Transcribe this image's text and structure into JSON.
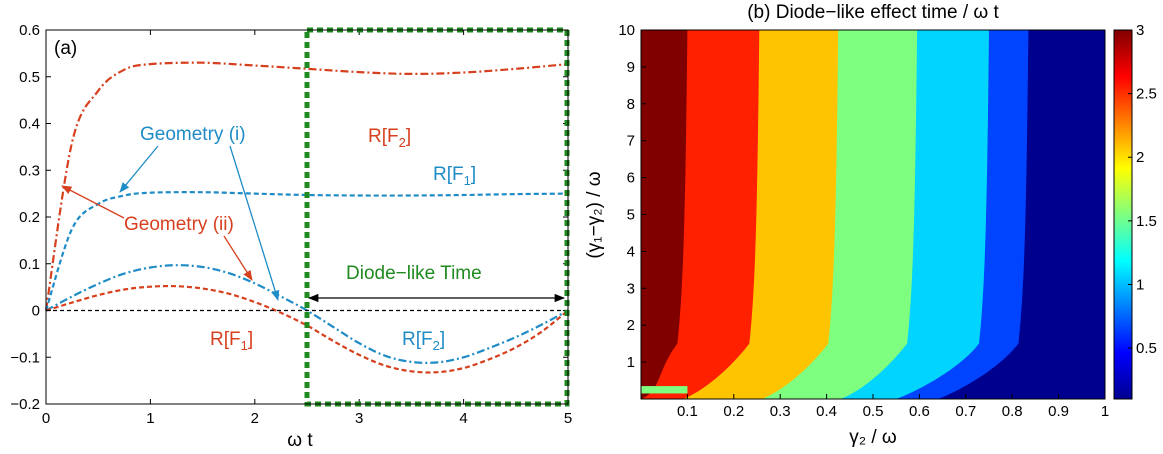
{
  "colors": {
    "red": "#d7401e",
    "blue": "#1f8cc6",
    "green": "#1f8a1f",
    "black": "#000000"
  },
  "chart_data": [
    {
      "type": "line",
      "panel_label": "(a)",
      "xlabel": "ω t",
      "xlim": [
        0,
        5
      ],
      "ylim": [
        -0.2,
        0.6
      ],
      "xticks": [
        "0",
        "1",
        "2",
        "3",
        "4",
        "5"
      ],
      "yticks": [
        "−0.2",
        "−0.1",
        "0",
        "0.1",
        "0.2",
        "0.3",
        "0.4",
        "0.5",
        "0.6"
      ],
      "grid": false,
      "series": [
        {
          "key": "red_dashdot",
          "label": "R[F₂]",
          "geometry": "ii",
          "x": [
            0,
            0.25,
            0.5,
            0.75,
            1.0,
            1.5,
            2.0,
            2.5,
            3.0,
            3.5,
            4.0,
            4.5,
            5.0
          ],
          "y": [
            0,
            0.36,
            0.47,
            0.515,
            0.527,
            0.53,
            0.524,
            0.517,
            0.51,
            0.506,
            0.509,
            0.517,
            0.527
          ]
        },
        {
          "key": "blue_dashed",
          "label": "R[F₁]",
          "geometry": "i",
          "x": [
            0,
            0.25,
            0.5,
            0.75,
            1.0,
            1.5,
            2.0,
            2.5,
            3.0,
            3.5,
            4.0,
            4.5,
            5.0
          ],
          "y": [
            0,
            0.175,
            0.228,
            0.246,
            0.252,
            0.253,
            0.25,
            0.247,
            0.246,
            0.246,
            0.247,
            0.249,
            0.25
          ]
        },
        {
          "key": "blue_dashdot",
          "label": "R[F₂]",
          "geometry": "i",
          "x": [
            0,
            0.25,
            0.5,
            0.75,
            1.0,
            1.25,
            1.5,
            1.75,
            2.0,
            2.25,
            2.5,
            2.75,
            3.0,
            3.25,
            3.5,
            3.75,
            4.0,
            4.25,
            4.5,
            4.75,
            5.0
          ],
          "y": [
            0,
            0.03,
            0.057,
            0.079,
            0.092,
            0.097,
            0.093,
            0.08,
            0.058,
            0.03,
            0.0,
            -0.035,
            -0.07,
            -0.097,
            -0.11,
            -0.111,
            -0.1,
            -0.08,
            -0.057,
            -0.03,
            0.0
          ]
        },
        {
          "key": "red_dashed",
          "label": "R[F₁]",
          "geometry": "ii",
          "x": [
            0,
            0.25,
            0.5,
            0.75,
            1.0,
            1.25,
            1.5,
            1.75,
            2.0,
            2.25,
            2.5,
            2.75,
            3.0,
            3.25,
            3.5,
            3.75,
            4.0,
            4.25,
            4.5,
            4.75,
            5.0
          ],
          "y": [
            0,
            0.017,
            0.033,
            0.045,
            0.051,
            0.052,
            0.047,
            0.036,
            0.018,
            -0.005,
            -0.032,
            -0.065,
            -0.095,
            -0.118,
            -0.13,
            -0.132,
            -0.123,
            -0.104,
            -0.079,
            -0.045,
            0.0
          ]
        },
        {
          "key": "zero_line",
          "x": [
            0,
            5
          ],
          "y": [
            0,
            0
          ]
        }
      ],
      "annotations": {
        "r_f2_red": "R[F",
        "r_f2_red_sub": "2",
        "r_f1_blue": "R[F",
        "r_f1_blue_sub": "1",
        "r_f1_red": "R[F",
        "r_f1_red_sub": "1",
        "r_f2_blue": "R[F",
        "r_f2_blue_sub": "2",
        "bracket": "]",
        "geometry_i": "Geometry (i)",
        "geometry_ii": "Geometry (ii)",
        "diode_time": "Diode−like Time"
      },
      "diode_region": {
        "x_start": 2.5,
        "x_end": 5.0
      }
    },
    {
      "type": "heatmap",
      "title": "(b) Diode−like effect time / ω t",
      "xlabel": "γ₂ / ω",
      "ylabel": "(γ₁−γ₂) / ω",
      "xlim": [
        0,
        1
      ],
      "ylim": [
        0,
        10
      ],
      "xticks": [
        "0.1",
        "0.2",
        "0.3",
        "0.4",
        "0.5",
        "0.6",
        "0.7",
        "0.8",
        "0.9",
        "1"
      ],
      "yticks": [
        "1",
        "2",
        "3",
        "4",
        "5",
        "6",
        "7",
        "8",
        "9",
        "10"
      ],
      "colorbar": {
        "range": [
          0.1,
          3
        ],
        "ticks": [
          "0.5",
          "1",
          "1.5",
          "2",
          "2.5",
          "3"
        ]
      },
      "bands": [
        {
          "level": 3.0,
          "color": "#800000",
          "boundary_x_top": 0.1,
          "boundary_x_bottom": 0.0
        },
        {
          "level": 2.5,
          "color": "#ff2000",
          "boundary_x_top": 0.255,
          "boundary_x_bottom": 0.09
        },
        {
          "level": 2.0,
          "color": "#ffc400",
          "boundary_x_top": 0.425,
          "boundary_x_bottom": 0.26
        },
        {
          "level": 1.5,
          "color": "#7fff7f",
          "boundary_x_top": 0.595,
          "boundary_x_bottom": 0.43
        },
        {
          "level": 1.0,
          "color": "#00d4ff",
          "boundary_x_top": 0.75,
          "boundary_x_bottom": 0.55
        },
        {
          "level": 0.5,
          "color": "#0044ff",
          "boundary_x_top": 0.835,
          "boundary_x_bottom": 0.64
        },
        {
          "level": 0.1,
          "color": "#00008f",
          "boundary_x_top": 1.0,
          "boundary_x_bottom": 1.0
        }
      ]
    }
  ]
}
